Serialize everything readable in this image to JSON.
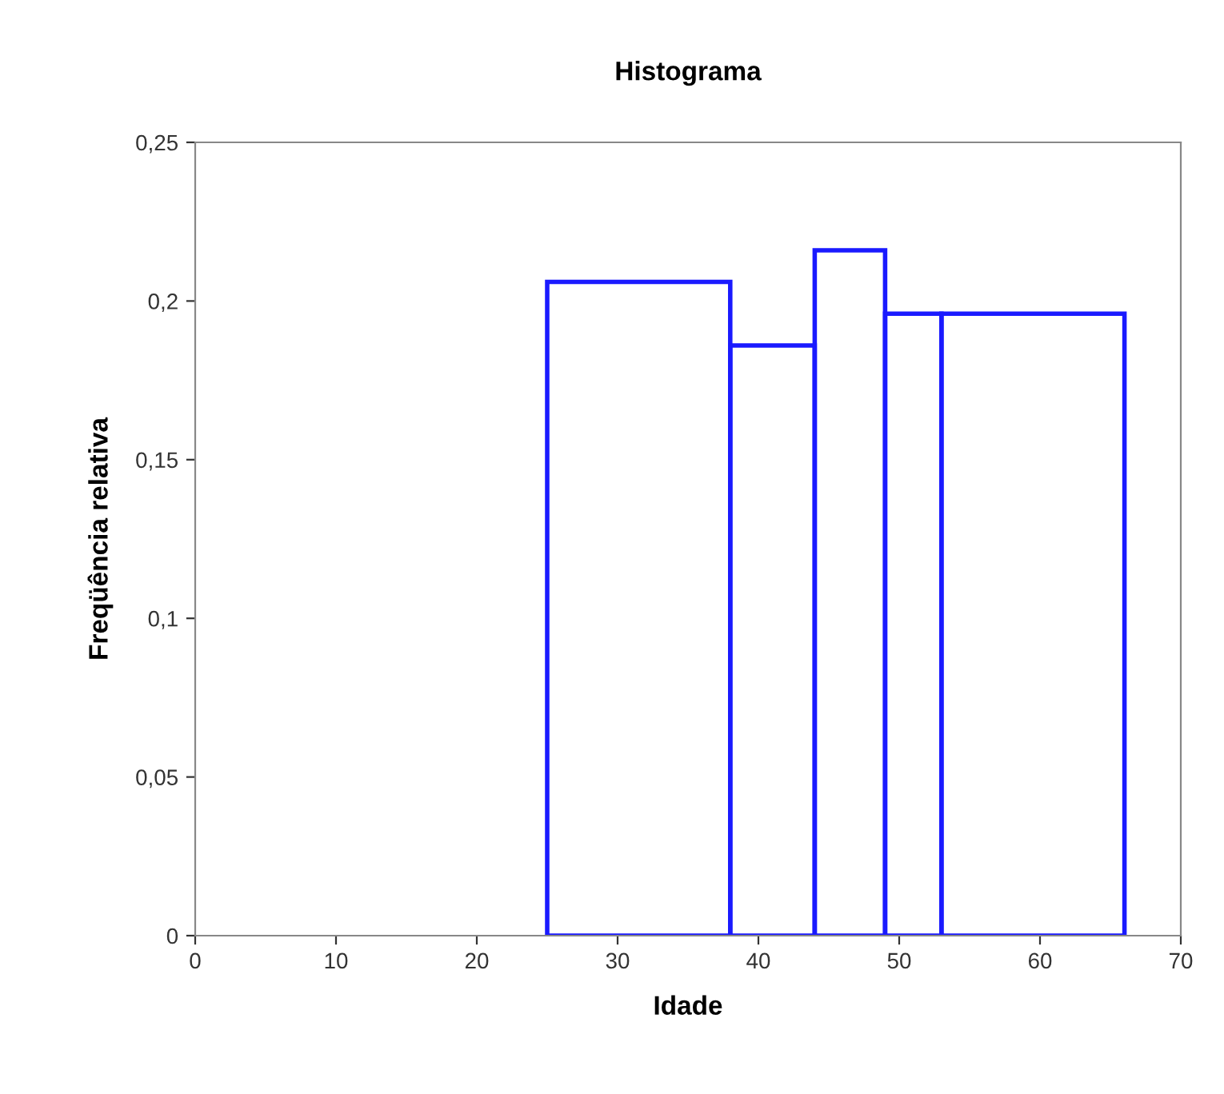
{
  "chart_data": {
    "type": "histogram",
    "title": "Histograma",
    "xlabel": "Idade",
    "ylabel": "Freqüência relativa",
    "bins": [
      25,
      38,
      44,
      49,
      53,
      66
    ],
    "values": [
      0.206,
      0.186,
      0.216,
      0.196,
      0.196
    ],
    "color": "#1a1aff",
    "xlim": [
      0,
      70
    ],
    "xticks": [
      0,
      10,
      20,
      30,
      40,
      50,
      60,
      70
    ],
    "ylim": [
      0,
      0.25
    ],
    "yticks": [
      {
        "value": 0,
        "label": "0"
      },
      {
        "value": 0.05,
        "label": "0,05"
      },
      {
        "value": 0.1,
        "label": "0,1"
      },
      {
        "value": 0.15,
        "label": "0,15"
      },
      {
        "value": 0.2,
        "label": "0,2"
      },
      {
        "value": 0.25,
        "label": "0,25"
      }
    ],
    "grid": false,
    "legend": false
  }
}
